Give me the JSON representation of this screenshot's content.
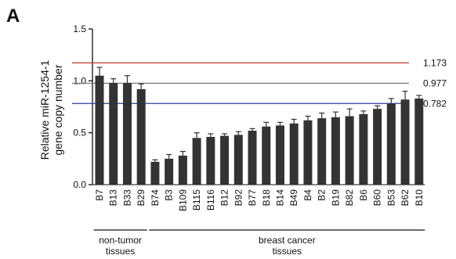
{
  "figure": {
    "panel_label": "A"
  },
  "chart_data": {
    "type": "bar",
    "title": "",
    "xlabel": "",
    "ylabel": "Relative miR-1254-1 gene copy number",
    "ylabel_lines": [
      "Relative miR-1254-1",
      "gene copy number"
    ],
    "ylim": [
      0.0,
      1.5
    ],
    "yticks": [
      0.0,
      0.5,
      1.0,
      1.5
    ],
    "ytick_labels": [
      "0.0",
      "0.5",
      "1.0",
      "1.5"
    ],
    "grid": false,
    "categories": [
      "B7",
      "B13",
      "B33",
      "B29",
      "B74",
      "B3",
      "B109",
      "B115",
      "B116",
      "B12",
      "B92",
      "B77",
      "B18",
      "B14",
      "B49",
      "B4",
      "B2",
      "B19",
      "B82",
      "B6",
      "B60",
      "B53",
      "B62",
      "B10"
    ],
    "values": [
      1.05,
      0.98,
      0.98,
      0.92,
      0.22,
      0.25,
      0.28,
      0.45,
      0.46,
      0.47,
      0.48,
      0.52,
      0.56,
      0.57,
      0.59,
      0.62,
      0.64,
      0.65,
      0.66,
      0.68,
      0.73,
      0.78,
      0.82,
      0.83
    ],
    "errors": [
      0.08,
      0.04,
      0.07,
      0.05,
      0.02,
      0.04,
      0.04,
      0.05,
      0.03,
      0.02,
      0.03,
      0.02,
      0.04,
      0.03,
      0.04,
      0.04,
      0.05,
      0.05,
      0.07,
      0.03,
      0.03,
      0.05,
      0.08,
      0.03
    ],
    "bar_color": "#333333",
    "reference_lines": [
      {
        "value": 1.173,
        "label": "1.173",
        "color": "#c0392b"
      },
      {
        "value": 0.977,
        "label": "0.977",
        "color": "#7a7a7a"
      },
      {
        "value": 0.782,
        "label": "0.782",
        "color": "#2c3e9e"
      }
    ],
    "groups": [
      {
        "label_lines": [
          "non-tumor",
          "tissues"
        ],
        "start_index": 0,
        "end_index": 3
      },
      {
        "label_lines": [
          "breast cancer",
          "tissues"
        ],
        "start_index": 4,
        "end_index": 23
      }
    ]
  }
}
